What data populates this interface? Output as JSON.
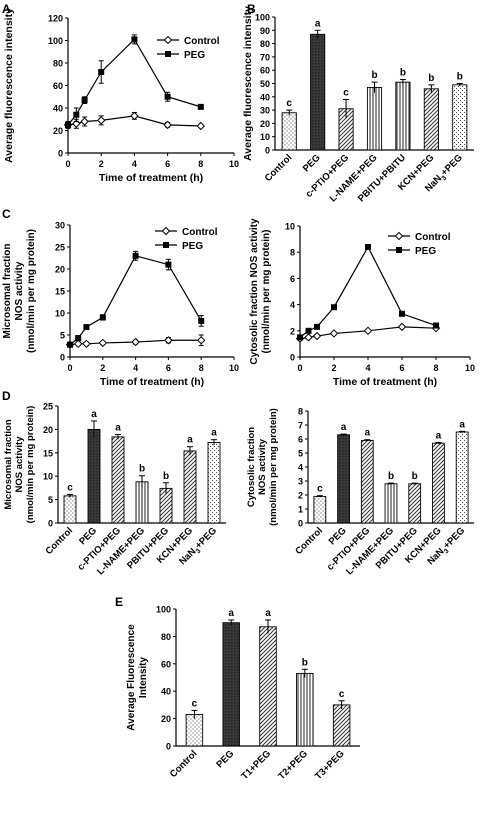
{
  "chart_data": [
    {
      "panel": "A",
      "type": "line",
      "xlabel": "Time of treatment (h)",
      "ylabel": "Average fluorescence intensity",
      "xlim": [
        0,
        10
      ],
      "ylim": [
        0,
        120
      ],
      "xticks": [
        0,
        2,
        4,
        6,
        8,
        10
      ],
      "yticks": [
        0,
        20,
        40,
        60,
        80,
        100,
        120
      ],
      "legend_position": "top-right",
      "series": [
        {
          "name": "Control",
          "marker": "open-diamond",
          "x": [
            0,
            0.5,
            1,
            2,
            4,
            6,
            8
          ],
          "y": [
            25,
            26,
            28,
            29,
            33,
            25,
            24
          ],
          "err": [
            3,
            4,
            4,
            4,
            3,
            2,
            1
          ]
        },
        {
          "name": "PEG",
          "marker": "filled-square",
          "x": [
            0,
            0.5,
            1,
            2,
            4,
            6,
            8
          ],
          "y": [
            25,
            34,
            47,
            72,
            101,
            50,
            41
          ],
          "err": [
            3,
            6,
            3,
            10,
            4,
            4,
            1
          ]
        }
      ]
    },
    {
      "panel": "B",
      "type": "bar",
      "ylabel": "Average fluorescence intensity",
      "ylim": [
        0,
        100
      ],
      "yticks": [
        0,
        10,
        20,
        30,
        40,
        50,
        60,
        70,
        80,
        90,
        100
      ],
      "categories": [
        "Control",
        "PEG",
        "c-PTIO+PEG",
        "L-NAME+PEG",
        "PBITU+PBITU",
        "KCN+PEG",
        "NaN3+PEG"
      ],
      "values": [
        28,
        87,
        31,
        47,
        51,
        46,
        49
      ],
      "err": [
        2,
        3,
        7,
        4,
        2,
        3,
        1
      ],
      "letters": [
        "c",
        "a",
        "c",
        "b",
        "b",
        "b",
        "b"
      ],
      "patterns": [
        "dots",
        "dark",
        "diag",
        "vert",
        "vert",
        "diag",
        "check"
      ]
    },
    {
      "panel": "C",
      "type": "line",
      "xlabel": "Time of treatment (h)",
      "ylabel_lines": [
        "Microsomal fraction",
        "NOS activity",
        "(nmol/min per mg protein)"
      ],
      "xlim": [
        0,
        10
      ],
      "ylim": [
        0,
        30
      ],
      "xticks": [
        0,
        2,
        4,
        6,
        8,
        10
      ],
      "yticks": [
        0,
        5,
        10,
        15,
        20,
        25,
        30
      ],
      "legend_position": "top-right",
      "series": [
        {
          "name": "Control",
          "marker": "open-diamond",
          "x": [
            0,
            0.5,
            1,
            2,
            4,
            6,
            8
          ],
          "y": [
            2.8,
            3.0,
            3.0,
            3.2,
            3.4,
            3.8,
            3.8
          ],
          "err": [
            0.4,
            0.4,
            0.4,
            0.4,
            0.4,
            0.6,
            1.2
          ]
        },
        {
          "name": "PEG",
          "marker": "filled-square",
          "x": [
            0,
            0.5,
            1,
            2,
            4,
            6,
            8
          ],
          "y": [
            2.8,
            4.3,
            6.8,
            9.0,
            23.0,
            21.0,
            8.2
          ],
          "err": [
            0.4,
            0.5,
            0.4,
            0.6,
            1.0,
            1.2,
            1.2
          ]
        }
      ]
    },
    {
      "panel": "C2",
      "type": "line",
      "xlabel": "Time of treatment (h)",
      "ylabel_lines": [
        "Cytosolic fraction NOS activity",
        "(nmol/min per mg protein)"
      ],
      "xlim": [
        0,
        10
      ],
      "ylim": [
        0,
        10
      ],
      "xticks": [
        0,
        2,
        4,
        6,
        8,
        10
      ],
      "yticks": [
        0,
        2,
        4,
        6,
        8,
        10
      ],
      "legend_position": "top-right",
      "series": [
        {
          "name": "Control",
          "marker": "open-diamond",
          "x": [
            0,
            0.5,
            1,
            2,
            4,
            6,
            8
          ],
          "y": [
            1.4,
            1.5,
            1.6,
            1.8,
            2.0,
            2.3,
            2.2
          ],
          "err": [
            0.1,
            0.1,
            0.1,
            0.1,
            0.1,
            0.1,
            0.1
          ]
        },
        {
          "name": "PEG",
          "marker": "filled-square",
          "x": [
            0,
            0.5,
            1,
            2,
            4,
            6,
            8
          ],
          "y": [
            1.5,
            2.0,
            2.3,
            3.8,
            8.4,
            3.3,
            2.4
          ],
          "err": [
            0.1,
            0.1,
            0.1,
            0.1,
            0.1,
            0.1,
            0.1
          ]
        }
      ]
    },
    {
      "panel": "D",
      "type": "bar",
      "ylabel_lines": [
        "Microsomal fraction",
        "NOS activity",
        "(nmol/min per mg protein)"
      ],
      "ylim": [
        0,
        25
      ],
      "yticks": [
        0,
        5,
        10,
        15,
        20,
        25
      ],
      "categories": [
        "Control",
        "PEG",
        "c-PTIO+PEG",
        "L-NAME+PEG",
        "PBITU+PEG",
        "KCN+PEG",
        "NaN3+PEG"
      ],
      "values": [
        5.8,
        20.0,
        18.4,
        8.8,
        7.4,
        15.4,
        17.2
      ],
      "err": [
        0.3,
        1.8,
        0.5,
        1.3,
        1.2,
        0.9,
        0.6
      ],
      "letters": [
        "c",
        "a",
        "a",
        "b",
        "b",
        "a",
        "a"
      ],
      "patterns": [
        "dots",
        "dark",
        "diag",
        "vert",
        "diag",
        "diag",
        "check"
      ]
    },
    {
      "panel": "D2",
      "type": "bar",
      "ylabel_lines": [
        "Cytosolic fraction",
        "NOS activity",
        "(nmol/min per mg protein)"
      ],
      "ylim": [
        0,
        8
      ],
      "yticks": [
        0,
        1,
        2,
        3,
        4,
        5,
        6,
        7,
        8
      ],
      "categories": [
        "Control",
        "PEG",
        "c-PTIO+PEG",
        "L-NAME+PEG",
        "PBITU+PEG",
        "KCN+PEG",
        "NaN3+PEG"
      ],
      "values": [
        1.9,
        6.3,
        5.9,
        2.8,
        2.8,
        5.7,
        6.5
      ],
      "err": [
        0.05,
        0.05,
        0.05,
        0.05,
        0.05,
        0.05,
        0.05
      ],
      "letters": [
        "c",
        "a",
        "a",
        "b",
        "b",
        "a",
        "a"
      ],
      "patterns": [
        "dots",
        "dark",
        "diag",
        "vert",
        "diag",
        "diag",
        "check"
      ]
    },
    {
      "panel": "E",
      "type": "bar",
      "ylabel_lines": [
        "Average Fluorescence",
        "Intensity"
      ],
      "ylim": [
        0,
        100
      ],
      "yticks": [
        0,
        20,
        40,
        60,
        80,
        100
      ],
      "categories": [
        "Control",
        "PEG",
        "T1+PEG",
        "T2+PEG",
        "T3+PEG"
      ],
      "values": [
        23,
        90,
        87,
        53,
        30
      ],
      "err": [
        3,
        2,
        5,
        3,
        3
      ],
      "letters": [
        "c",
        "a",
        "a",
        "b",
        "c"
      ],
      "patterns": [
        "dots",
        "dark",
        "diag",
        "vert",
        "diag"
      ]
    }
  ],
  "panel_labels": [
    "A",
    "B",
    "C",
    "D",
    "E"
  ]
}
